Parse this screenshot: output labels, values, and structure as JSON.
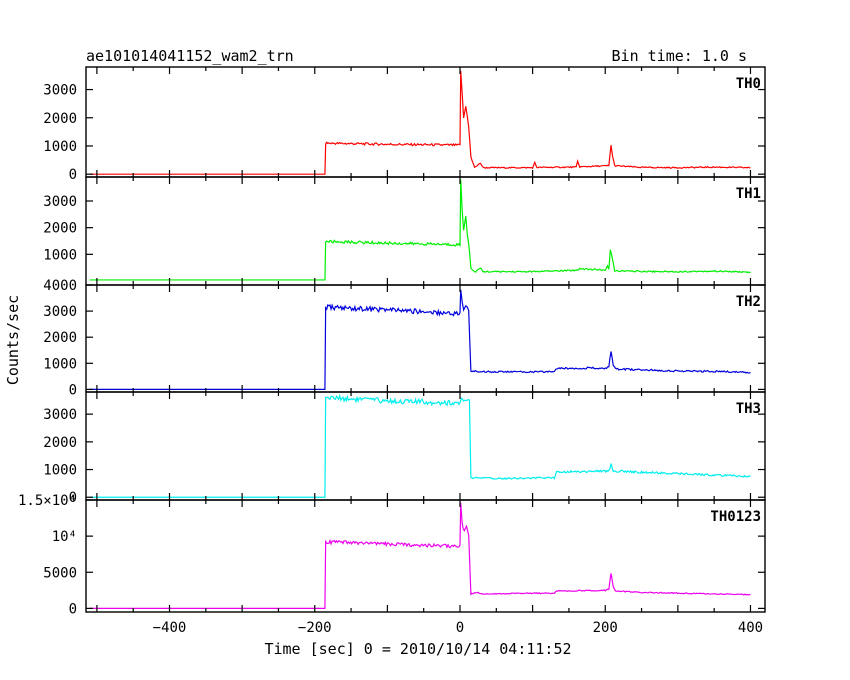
{
  "chart_data": {
    "type": "line",
    "title": "ae101014041152_wam2_trn",
    "bin_time_label": "Bin time: 1.0 s",
    "xlabel": "Time [sec] 0 = 2010/10/14 04:11:52",
    "ylabel": "Counts/sec",
    "xlim": [
      -515,
      420
    ],
    "xticks": [
      -400,
      -200,
      0,
      200,
      400
    ],
    "xtick_labels": [
      "−400",
      "−200",
      "0",
      "200",
      "400"
    ],
    "panels": [
      {
        "name": "TH0",
        "color": "#ff0000",
        "ylim": [
          -100,
          3800
        ],
        "yticks": [
          0,
          1000,
          2000,
          3000
        ],
        "ytick_labels": [
          "0",
          "1000",
          "2000",
          "3000"
        ],
        "points": [
          [
            -510,
            0
          ],
          [
            -186,
            0
          ],
          [
            -185,
            1100
          ],
          [
            -100,
            1060
          ],
          [
            0,
            1030
          ],
          [
            1,
            3700
          ],
          [
            3,
            2800
          ],
          [
            5,
            2000
          ],
          [
            8,
            2400
          ],
          [
            10,
            2100
          ],
          [
            12,
            1700
          ],
          [
            15,
            600
          ],
          [
            20,
            250
          ],
          [
            25,
            320
          ],
          [
            28,
            400
          ],
          [
            32,
            230
          ],
          [
            100,
            230
          ],
          [
            103,
            400
          ],
          [
            106,
            240
          ],
          [
            160,
            250
          ],
          [
            162,
            450
          ],
          [
            165,
            260
          ],
          [
            205,
            300
          ],
          [
            208,
            1050
          ],
          [
            210,
            650
          ],
          [
            213,
            300
          ],
          [
            250,
            240
          ],
          [
            300,
            230
          ],
          [
            350,
            250
          ],
          [
            400,
            230
          ]
        ]
      },
      {
        "name": "TH1",
        "color": "#00ee00",
        "ylim": [
          -150,
          3900
        ],
        "yticks": [
          1000,
          2000,
          3000
        ],
        "ytick_labels": [
          "1000",
          "2000",
          "3000"
        ],
        "points": [
          [
            -510,
            40
          ],
          [
            -186,
            40
          ],
          [
            -185,
            1480
          ],
          [
            -100,
            1420
          ],
          [
            0,
            1360
          ],
          [
            1,
            3800
          ],
          [
            3,
            2600
          ],
          [
            5,
            1900
          ],
          [
            8,
            2500
          ],
          [
            10,
            1800
          ],
          [
            12,
            1400
          ],
          [
            15,
            500
          ],
          [
            20,
            330
          ],
          [
            25,
            420
          ],
          [
            28,
            480
          ],
          [
            32,
            350
          ],
          [
            100,
            350
          ],
          [
            160,
            400
          ],
          [
            165,
            460
          ],
          [
            200,
            410
          ],
          [
            203,
            550
          ],
          [
            205,
            420
          ],
          [
            207,
            1200
          ],
          [
            210,
            800
          ],
          [
            213,
            380
          ],
          [
            250,
            360
          ],
          [
            300,
            350
          ],
          [
            350,
            370
          ],
          [
            400,
            330
          ]
        ]
      },
      {
        "name": "TH2",
        "color": "#0000dd",
        "ylim": [
          -100,
          4000
        ],
        "yticks": [
          0,
          1000,
          2000,
          3000,
          4000
        ],
        "ytick_labels": [
          "0",
          "1000",
          "2000",
          "3000",
          "4000"
        ],
        "points": [
          [
            -510,
            0
          ],
          [
            -186,
            0
          ],
          [
            -185,
            3150
          ],
          [
            -100,
            3050
          ],
          [
            0,
            2900
          ],
          [
            1,
            3850
          ],
          [
            3,
            3300
          ],
          [
            5,
            3000
          ],
          [
            8,
            3200
          ],
          [
            10,
            3100
          ],
          [
            12,
            3000
          ],
          [
            15,
            700
          ],
          [
            30,
            680
          ],
          [
            100,
            670
          ],
          [
            130,
            680
          ],
          [
            132,
            800
          ],
          [
            180,
            820
          ],
          [
            200,
            790
          ],
          [
            205,
            900
          ],
          [
            208,
            1450
          ],
          [
            211,
            900
          ],
          [
            214,
            780
          ],
          [
            250,
            750
          ],
          [
            300,
            700
          ],
          [
            350,
            690
          ],
          [
            400,
            650
          ]
        ]
      },
      {
        "name": "TH3",
        "color": "#00eeee",
        "ylim": [
          -100,
          3800
        ],
        "yticks": [
          0,
          1000,
          2000,
          3000
        ],
        "ytick_labels": [
          "0",
          "1000",
          "2000",
          "3000"
        ],
        "points": [
          [
            -510,
            0
          ],
          [
            -186,
            0
          ],
          [
            -185,
            3600
          ],
          [
            -100,
            3480
          ],
          [
            0,
            3400
          ],
          [
            2,
            3550
          ],
          [
            5,
            3400
          ],
          [
            10,
            3500
          ],
          [
            13,
            3450
          ],
          [
            15,
            700
          ],
          [
            50,
            680
          ],
          [
            130,
            700
          ],
          [
            133,
            920
          ],
          [
            180,
            930
          ],
          [
            205,
            950
          ],
          [
            208,
            1200
          ],
          [
            211,
            950
          ],
          [
            250,
            900
          ],
          [
            300,
            850
          ],
          [
            350,
            800
          ],
          [
            400,
            750
          ]
        ]
      },
      {
        "name": "TH0123",
        "color": "#ee00ee",
        "ylim": [
          -500,
          15000
        ],
        "yticks": [
          0,
          5000,
          10000,
          15000
        ],
        "ytick_labels": [
          "0",
          "5000",
          "10⁴",
          "1.5×10⁴"
        ],
        "points": [
          [
            -510,
            0
          ],
          [
            -186,
            0
          ],
          [
            -185,
            9200
          ],
          [
            -100,
            8900
          ],
          [
            0,
            8600
          ],
          [
            1,
            14500
          ],
          [
            3,
            11500
          ],
          [
            6,
            10500
          ],
          [
            9,
            11500
          ],
          [
            12,
            10000
          ],
          [
            15,
            2000
          ],
          [
            25,
            2200
          ],
          [
            30,
            2000
          ],
          [
            100,
            2100
          ],
          [
            130,
            2100
          ],
          [
            133,
            2400
          ],
          [
            200,
            2500
          ],
          [
            205,
            2700
          ],
          [
            208,
            4800
          ],
          [
            211,
            3000
          ],
          [
            214,
            2400
          ],
          [
            250,
            2200
          ],
          [
            300,
            2100
          ],
          [
            350,
            2000
          ],
          [
            400,
            1900
          ]
        ]
      }
    ]
  }
}
